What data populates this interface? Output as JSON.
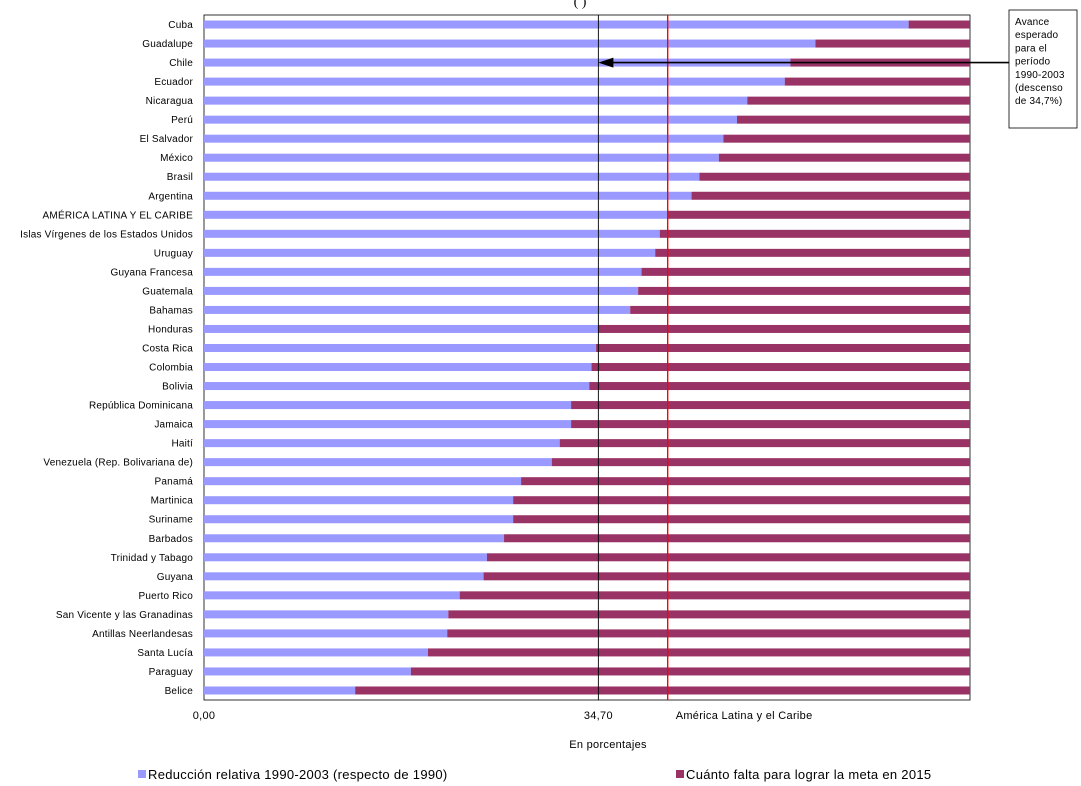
{
  "chart_data": {
    "type": "bar",
    "orientation": "horizontal",
    "stacked": true,
    "title": "(                              )",
    "xlabel": "En porcentajes",
    "xlim": [
      0,
      67.4
    ],
    "x_ticks": [
      "0,00",
      "34,70"
    ],
    "categories": [
      "Cuba",
      "Guadalupe",
      "Chile",
      "Ecuador",
      "Nicaragua",
      "Perú",
      "El Salvador",
      "México",
      "Brasil",
      "Argentina",
      "AMÉRICA LATINA Y EL CARIBE",
      "Islas Vírgenes de los Estados Unidos",
      "Uruguay",
      "Guyana Francesa",
      "Guatemala",
      "Bahamas",
      "Honduras",
      "Costa Rica",
      "Colombia",
      "Bolivia",
      "República Dominicana",
      "Jamaica",
      "Haití",
      "Venezuela (Rep. Bolivariana de)",
      "Panamá",
      "Martinica",
      "Suriname",
      "Barbados",
      "Trinidad y Tabago",
      "Guyana",
      "Puerto Rico",
      "San Vicente y las Granadinas",
      "Antillas Neerlandesas",
      "Santa Lucía",
      "Paraguay",
      "Belice"
    ],
    "series": [
      {
        "name": "Reducción relativa 1990-2003 (respecto de 1990)",
        "color": "#9999ff",
        "values": [
          62.0,
          53.8,
          51.6,
          51.1,
          47.8,
          46.9,
          45.7,
          45.3,
          43.6,
          42.9,
          40.8,
          40.1,
          39.7,
          38.5,
          38.2,
          37.5,
          34.7,
          34.5,
          34.1,
          33.9,
          32.3,
          32.3,
          31.3,
          30.6,
          27.9,
          27.2,
          27.2,
          26.4,
          24.9,
          24.6,
          22.5,
          21.5,
          21.4,
          19.7,
          18.2,
          13.3
        ]
      },
      {
        "name": "Cuánto falta para lograr la meta en 2015",
        "color": "#993366",
        "values": [
          5.4,
          13.6,
          15.8,
          16.3,
          19.6,
          20.5,
          21.7,
          22.1,
          23.8,
          24.5,
          26.6,
          27.3,
          27.7,
          28.9,
          29.2,
          29.9,
          32.7,
          32.9,
          33.3,
          33.5,
          35.1,
          35.1,
          36.1,
          36.8,
          39.5,
          40.2,
          40.2,
          41.0,
          42.5,
          42.8,
          44.9,
          45.9,
          46.0,
          47.7,
          49.2,
          54.1
        ]
      }
    ],
    "reference_lines": [
      {
        "value": 34.7,
        "label": "34,70",
        "color": "#000000",
        "style": "solid"
      },
      {
        "value": 40.8,
        "label": "América Latina y el Caribe",
        "color": "#ff0000",
        "style": "solid"
      }
    ],
    "annotation": {
      "lines": [
        "Avance",
        "esperado",
        "para el",
        "período",
        "1990-2003",
        "(descenso",
        "de 34,7%)"
      ],
      "points_to": "Chile"
    },
    "legend_position": "bottom"
  }
}
